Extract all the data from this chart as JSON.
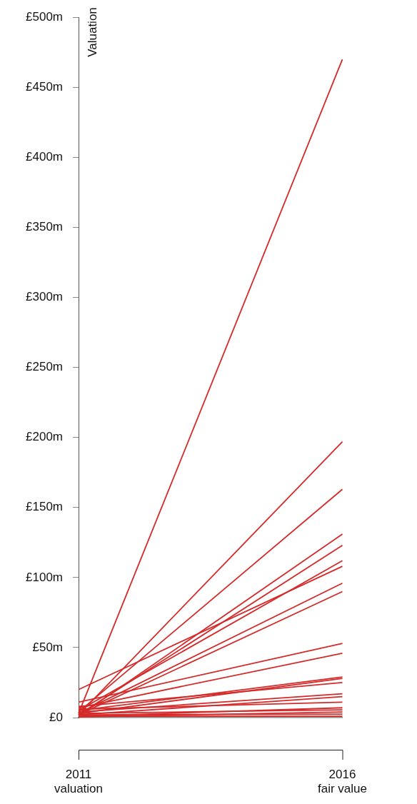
{
  "chart_data": {
    "type": "line",
    "ylabel": "Valuation",
    "categories": [
      "2011 valuation",
      "2016 fair value"
    ],
    "ylim": [
      0,
      500
    ],
    "yticks": [
      {
        "value": 0,
        "label": "£0"
      },
      {
        "value": 50,
        "label": "£50m"
      },
      {
        "value": 100,
        "label": "£100m"
      },
      {
        "value": 150,
        "label": "£150m"
      },
      {
        "value": 200,
        "label": "£200m"
      },
      {
        "value": 250,
        "label": "£250m"
      },
      {
        "value": 300,
        "label": "£300m"
      },
      {
        "value": 350,
        "label": "£350m"
      },
      {
        "value": 400,
        "label": "£400m"
      },
      {
        "value": 450,
        "label": "£450m"
      },
      {
        "value": 500,
        "label": "£500m"
      }
    ],
    "grid": false,
    "legend": false,
    "marker": "none",
    "line_style": "solid",
    "series": [
      {
        "color": "#d42a2a",
        "values": [
          3,
          470
        ]
      },
      {
        "color": "#d42a2a",
        "values": [
          2,
          197
        ]
      },
      {
        "color": "#d42a2a",
        "values": [
          4,
          163
        ]
      },
      {
        "color": "#d42a2a",
        "values": [
          1,
          131
        ]
      },
      {
        "color": "#d42a2a",
        "values": [
          2,
          123
        ]
      },
      {
        "color": "#d42a2a",
        "values": [
          5,
          112
        ]
      },
      {
        "color": "#d42a2a",
        "values": [
          20,
          108
        ]
      },
      {
        "color": "#d42a2a",
        "values": [
          3,
          96
        ]
      },
      {
        "color": "#d42a2a",
        "values": [
          2,
          90
        ]
      },
      {
        "color": "#d42a2a",
        "values": [
          11,
          53
        ]
      },
      {
        "color": "#d42a2a",
        "values": [
          7,
          46
        ]
      },
      {
        "color": "#d42a2a",
        "values": [
          5,
          29
        ]
      },
      {
        "color": "#d42a2a",
        "values": [
          3,
          28
        ]
      },
      {
        "color": "#d42a2a",
        "values": [
          8,
          25
        ]
      },
      {
        "color": "#d42a2a",
        "values": [
          4,
          17
        ]
      },
      {
        "color": "#d42a2a",
        "values": [
          2,
          15
        ]
      },
      {
        "color": "#d42a2a",
        "values": [
          6,
          11
        ]
      },
      {
        "color": "#d42a2a",
        "values": [
          1,
          7
        ]
      },
      {
        "color": "#d42a2a",
        "values": [
          3,
          5.5
        ]
      },
      {
        "color": "#d42a2a",
        "values": [
          0.5,
          4
        ]
      },
      {
        "color": "#d42a2a",
        "values": [
          2,
          2.5
        ]
      },
      {
        "color": "#d42a2a",
        "values": [
          1,
          1
        ]
      }
    ]
  }
}
